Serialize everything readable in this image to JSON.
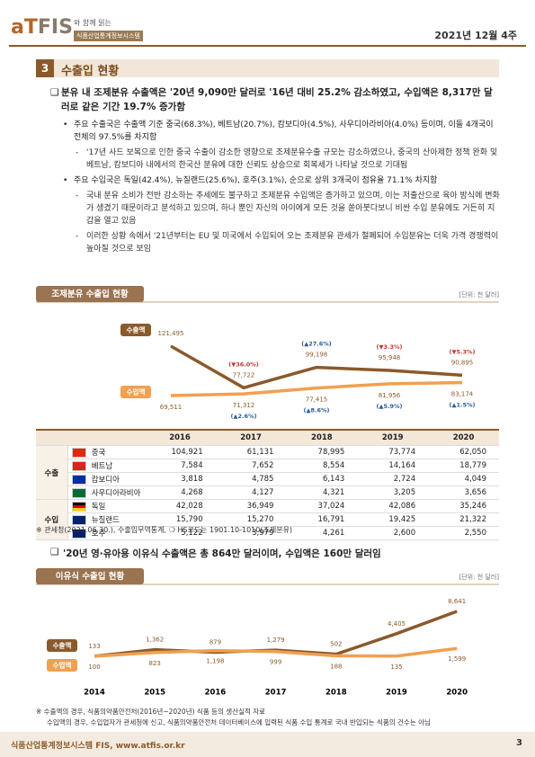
{
  "header": {
    "logo_at": "aT",
    "logo_fis": "FIS",
    "tagline": "와 함께 읽는",
    "system": "식품산업통계정보시스템",
    "date": "2021년 12월 4주"
  },
  "section": {
    "number": "3",
    "title": "수출입 현황"
  },
  "paragraphs": [
    {
      "level": 0,
      "marker": "❑",
      "text": "분유 내 조제분유 수출액은 '20년 9,090만 달러로 '16년 대비 25.2% 감소하였고, 수입액은 8,317만 달러로 같은 기간 19.7% 증가함"
    },
    {
      "level": 1,
      "marker": "•",
      "text": "주요 수출국은 수출액 기준 중국(68.3%), 베트남(20.7%), 캄보디아(4.5%), 사우디아라비아(4.0%) 등이며, 이들 4개국이 전체의 97.5%를 차지함"
    },
    {
      "level": 2,
      "marker": "-",
      "text": "'17년 사드 보복으로 인한 중국 수출이 감소한 영향으로 조제분유수출 규모는 감소하였으나, 중국의 산아제한 정책 완화 및 베트남, 캄보디아 내에서의 한국산 분유에 대한 신뢰도 상승으로 회복세가 나타날 것으로 기대됨"
    },
    {
      "level": 1,
      "marker": "•",
      "text": "주요 수입국은 독일(42.4%), 뉴질랜드(25.6%), 호주(3.1%), 순으로 상위 3개국이 점유율 71.1% 차지함"
    },
    {
      "level": 2,
      "marker": "-",
      "text": "국내 분유 소비가 전반 감소하는 추세에도 불구하고 조제분유 수입액은 증가하고 있으며, 이는 저출산으로 육아 방식에 변화가 생겼기 때문이라고 분석하고 있으며, 하나 뿐인 자신의 아이에게 모든 것을 쏟아붓다보니 비싼 수입 분유에도 거든히 지갑을 열고 있음"
    },
    {
      "level": 2,
      "marker": "-",
      "text": "이러한 상황 속에서 '21년부터는 EU 및 미국에서 수입되어 오는 조제분유 관세가 철폐되어 수입분유는 더욱 가격 경쟁력이 높아질 것으로 보임"
    }
  ],
  "chart_data": [
    {
      "type": "line",
      "title": "조제분유 수출입 현황",
      "unit": "[단위: 천 달러]",
      "categories": [
        "2016",
        "2017",
        "2018",
        "2019",
        "2020"
      ],
      "series": [
        {
          "name": "수출액",
          "color": "#8a5a2b",
          "values": [
            121495,
            77722,
            99198,
            95948,
            90895
          ],
          "value_labels": [
            "121,495",
            "77,722",
            "99,198",
            "95,948",
            "90,895"
          ],
          "change_labels": [
            null,
            "(▼36.0%)",
            "(▲27.6%)",
            "(▼3.3%)",
            "(▼5.3%)"
          ]
        },
        {
          "name": "수입액",
          "color": "#f0a050",
          "values": [
            69511,
            71312,
            77415,
            81956,
            83174
          ],
          "value_labels": [
            "69,511",
            "71,312",
            "77,415",
            "81,956",
            "83,174"
          ],
          "change_labels": [
            null,
            "(▲2.6%)",
            "(▲8.6%)",
            "(▲5.9%)",
            "(▲1.5%)"
          ]
        }
      ]
    },
    {
      "type": "line",
      "title": "이유식 수출입 현황",
      "unit": "[단위: 천 달러]",
      "categories": [
        "2014",
        "2015",
        "2016",
        "2017",
        "2018",
        "2019",
        "2020"
      ],
      "series": [
        {
          "name": "수출액",
          "color": "#8a5a2b",
          "values": [
            133,
            1362,
            879,
            1279,
            502,
            4405,
            8641
          ],
          "value_labels": [
            "133",
            "1,362",
            "879",
            "1,279",
            "502",
            "4,405",
            "8,641"
          ]
        },
        {
          "name": "수입액",
          "color": "#f0a050",
          "values": [
            100,
            823,
            1198,
            999,
            188,
            135,
            1599
          ],
          "value_labels": [
            "100",
            "823",
            "1,198",
            "999",
            "188",
            "135",
            "1,599"
          ]
        }
      ]
    }
  ],
  "table": {
    "groups": [
      {
        "label": "수출",
        "rows": [
          {
            "country": "중국",
            "values": [
              "104,921",
              "61,131",
              "78,995",
              "73,774",
              "62,050"
            ]
          },
          {
            "country": "베트남",
            "values": [
              "7,584",
              "7,652",
              "8,554",
              "14,164",
              "18,779"
            ]
          },
          {
            "country": "캄보디아",
            "values": [
              "3,818",
              "4,785",
              "6,143",
              "2,724",
              "4,049"
            ]
          },
          {
            "country": "사우디아라비아",
            "values": [
              "4,268",
              "4,127",
              "4,321",
              "3,205",
              "3,656"
            ]
          }
        ]
      },
      {
        "label": "수입",
        "rows": [
          {
            "country": "독일",
            "values": [
              "42,028",
              "36,949",
              "37,024",
              "42,086",
              "35,246"
            ]
          },
          {
            "country": "뉴질랜드",
            "values": [
              "15,790",
              "15,270",
              "16,791",
              "19,425",
              "21,322"
            ]
          },
          {
            "country": "호주",
            "values": [
              "5,122",
              "3,979",
              "4,261",
              "2,600",
              "2,550"
            ]
          }
        ]
      }
    ]
  },
  "source_note": "※ 관세청(2021.06.30.), 수출입무역통계, ❍ HS코드는 1901.10-1010(조제분유)",
  "paragraph2": {
    "marker": "❑",
    "text": "'20년 영·유아용 이유식 수출액은 총 864만 달러이며, 수입액은 160만 달러임"
  },
  "notes": [
    "※ 수출액의 경우, 식품의약품안전처(2016년~2020년) 식품 등의 생산실적 자료",
    "수입액의 경우, 수입업자가 관세청에 신고, 식품의약품안전처 데이터베이스에 입력된 식품 수입 통계로 국내 반입되는 식품의 건수는 아님"
  ],
  "footer": {
    "site": "식품산업통계정보시스템 FIS, www.atfis.or.kr",
    "page": "3"
  }
}
